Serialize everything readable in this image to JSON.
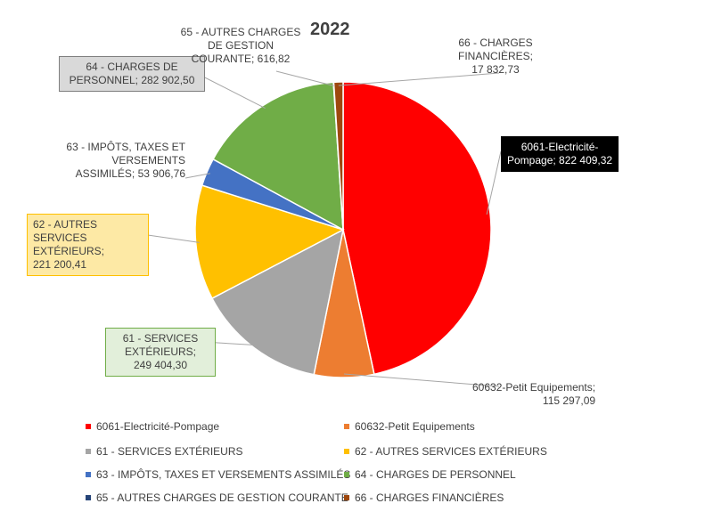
{
  "chart_data": {
    "type": "pie",
    "title": "2022",
    "categories": [
      "6061-Electricité-Pompage",
      "60632-Petit Equipements",
      "61 - SERVICES EXTÉRIEURS",
      "62 - AUTRES SERVICES EXTÉRIEURS",
      "63 - IMPÔTS, TAXES ET VERSEMENTS ASSIMILÉS",
      "64 - CHARGES DE PERSONNEL",
      "65 - AUTRES CHARGES DE GESTION COURANTE",
      "66 - CHARGES FINANCIÈRES"
    ],
    "values": [
      822409.32,
      115297.09,
      249404.3,
      221200.41,
      53906.76,
      282902.5,
      616.82,
      17832.73
    ],
    "colors": [
      "#ff0000",
      "#ed7d31",
      "#a5a5a5",
      "#ffc000",
      "#4472c4",
      "#70ad47",
      "#264478",
      "#9e480e"
    ],
    "legend_position": "bottom"
  },
  "labels": {
    "l0": [
      "6061-Electricité-",
      "Pompage; 822 409,32"
    ],
    "l1": [
      "60632-Petit Equipements;",
      "115 297,09"
    ],
    "l2": [
      "61 - SERVICES",
      "EXTÉRIEURS;",
      "249 404,30"
    ],
    "l3": [
      "62 - AUTRES SERVICES",
      "EXTÉRIEURS;",
      "221 200,41"
    ],
    "l4": [
      "63 - IMPÔTS, TAXES ET",
      "VERSEMENTS",
      "ASSIMILÉS; 53 906,76"
    ],
    "l5": [
      "64 - CHARGES DE",
      "PERSONNEL; 282 902,50"
    ],
    "l6": [
      "65 - AUTRES CHARGES",
      "DE GESTION",
      "COURANTE; 616,82"
    ],
    "l7": [
      "66 - CHARGES",
      "FINANCIÈRES;",
      "17 832,73"
    ]
  }
}
